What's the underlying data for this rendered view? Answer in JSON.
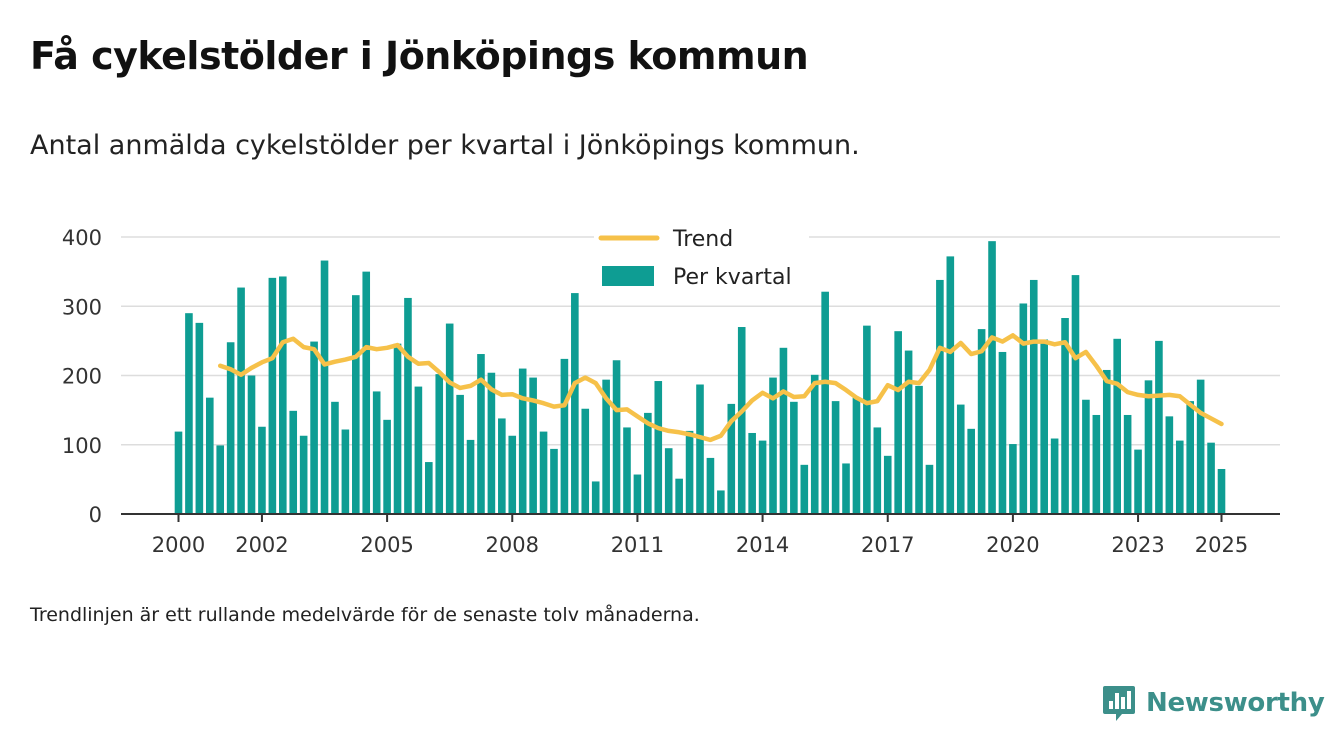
{
  "title": "Få cykelstölder i Jönköpings kommun",
  "subtitle": "Antal anmälda cykelstölder per kvartal i Jönköpings kommun.",
  "note": "Trendlinjen är ett rullande medelvärde för de senaste tolv månaderna.",
  "brand": {
    "name": "Newsworthy",
    "icon": "newsworthy-logo-icon",
    "color": "#3c8f8a"
  },
  "colors": {
    "bars": "#0e9d93",
    "trend": "#f6c149",
    "grid": "#dddddd",
    "axis": "#333333"
  },
  "chart_data": {
    "type": "bar",
    "title": "",
    "xlabel": "",
    "ylabel": "",
    "ylim": [
      0,
      400
    ],
    "yticks": [
      "0",
      "100",
      "200",
      "300",
      "400"
    ],
    "xticks": [
      "2000",
      "2002",
      "2005",
      "2008",
      "2011",
      "2014",
      "2017",
      "2020",
      "2023",
      "2025"
    ],
    "grid": true,
    "legend": "top-center",
    "start_quarter": "2000 Q1",
    "series": [
      {
        "name": "Per kvartal",
        "type": "bar",
        "values": [
          119,
          290,
          276,
          168,
          99,
          248,
          327,
          200,
          126,
          341,
          343,
          149,
          113,
          249,
          366,
          162,
          122,
          316,
          350,
          177,
          136,
          246,
          312,
          184,
          75,
          202,
          275,
          172,
          107,
          231,
          204,
          138,
          113,
          210,
          197,
          119,
          94,
          224,
          319,
          152,
          47,
          194,
          222,
          125,
          57,
          146,
          192,
          95,
          51,
          120,
          187,
          81,
          34,
          159,
          270,
          117,
          106,
          197,
          240,
          162,
          71,
          201,
          321,
          163,
          73,
          168,
          272,
          125,
          84,
          264,
          236,
          185,
          71,
          338,
          372,
          158,
          123,
          267,
          394,
          234,
          101,
          304,
          338,
          252,
          109,
          283,
          345,
          165,
          143,
          208,
          253,
          143,
          93,
          193,
          250,
          141,
          106,
          163,
          194,
          103,
          65
        ]
      },
      {
        "name": "Trend",
        "type": "line",
        "values": [
          null,
          null,
          null,
          null,
          214,
          209,
          201,
          211,
          219,
          225,
          248,
          253,
          241,
          238,
          216,
          220,
          223,
          227,
          241,
          238,
          240,
          244,
          227,
          217,
          218,
          205,
          190,
          182,
          185,
          194,
          180,
          172,
          173,
          167,
          164,
          160,
          155,
          157,
          189,
          197,
          189,
          167,
          150,
          151,
          141,
          131,
          124,
          120,
          118,
          115,
          111,
          107,
          113,
          134,
          148,
          164,
          175,
          167,
          177,
          169,
          170,
          189,
          191,
          189,
          179,
          168,
          160,
          163,
          186,
          179,
          191,
          189,
          208,
          240,
          234,
          247,
          231,
          235,
          255,
          249,
          258,
          246,
          249,
          249,
          245,
          248,
          225,
          234,
          214,
          192,
          188,
          176,
          172,
          170,
          171,
          172,
          170,
          158,
          146,
          138,
          130
        ]
      }
    ]
  }
}
